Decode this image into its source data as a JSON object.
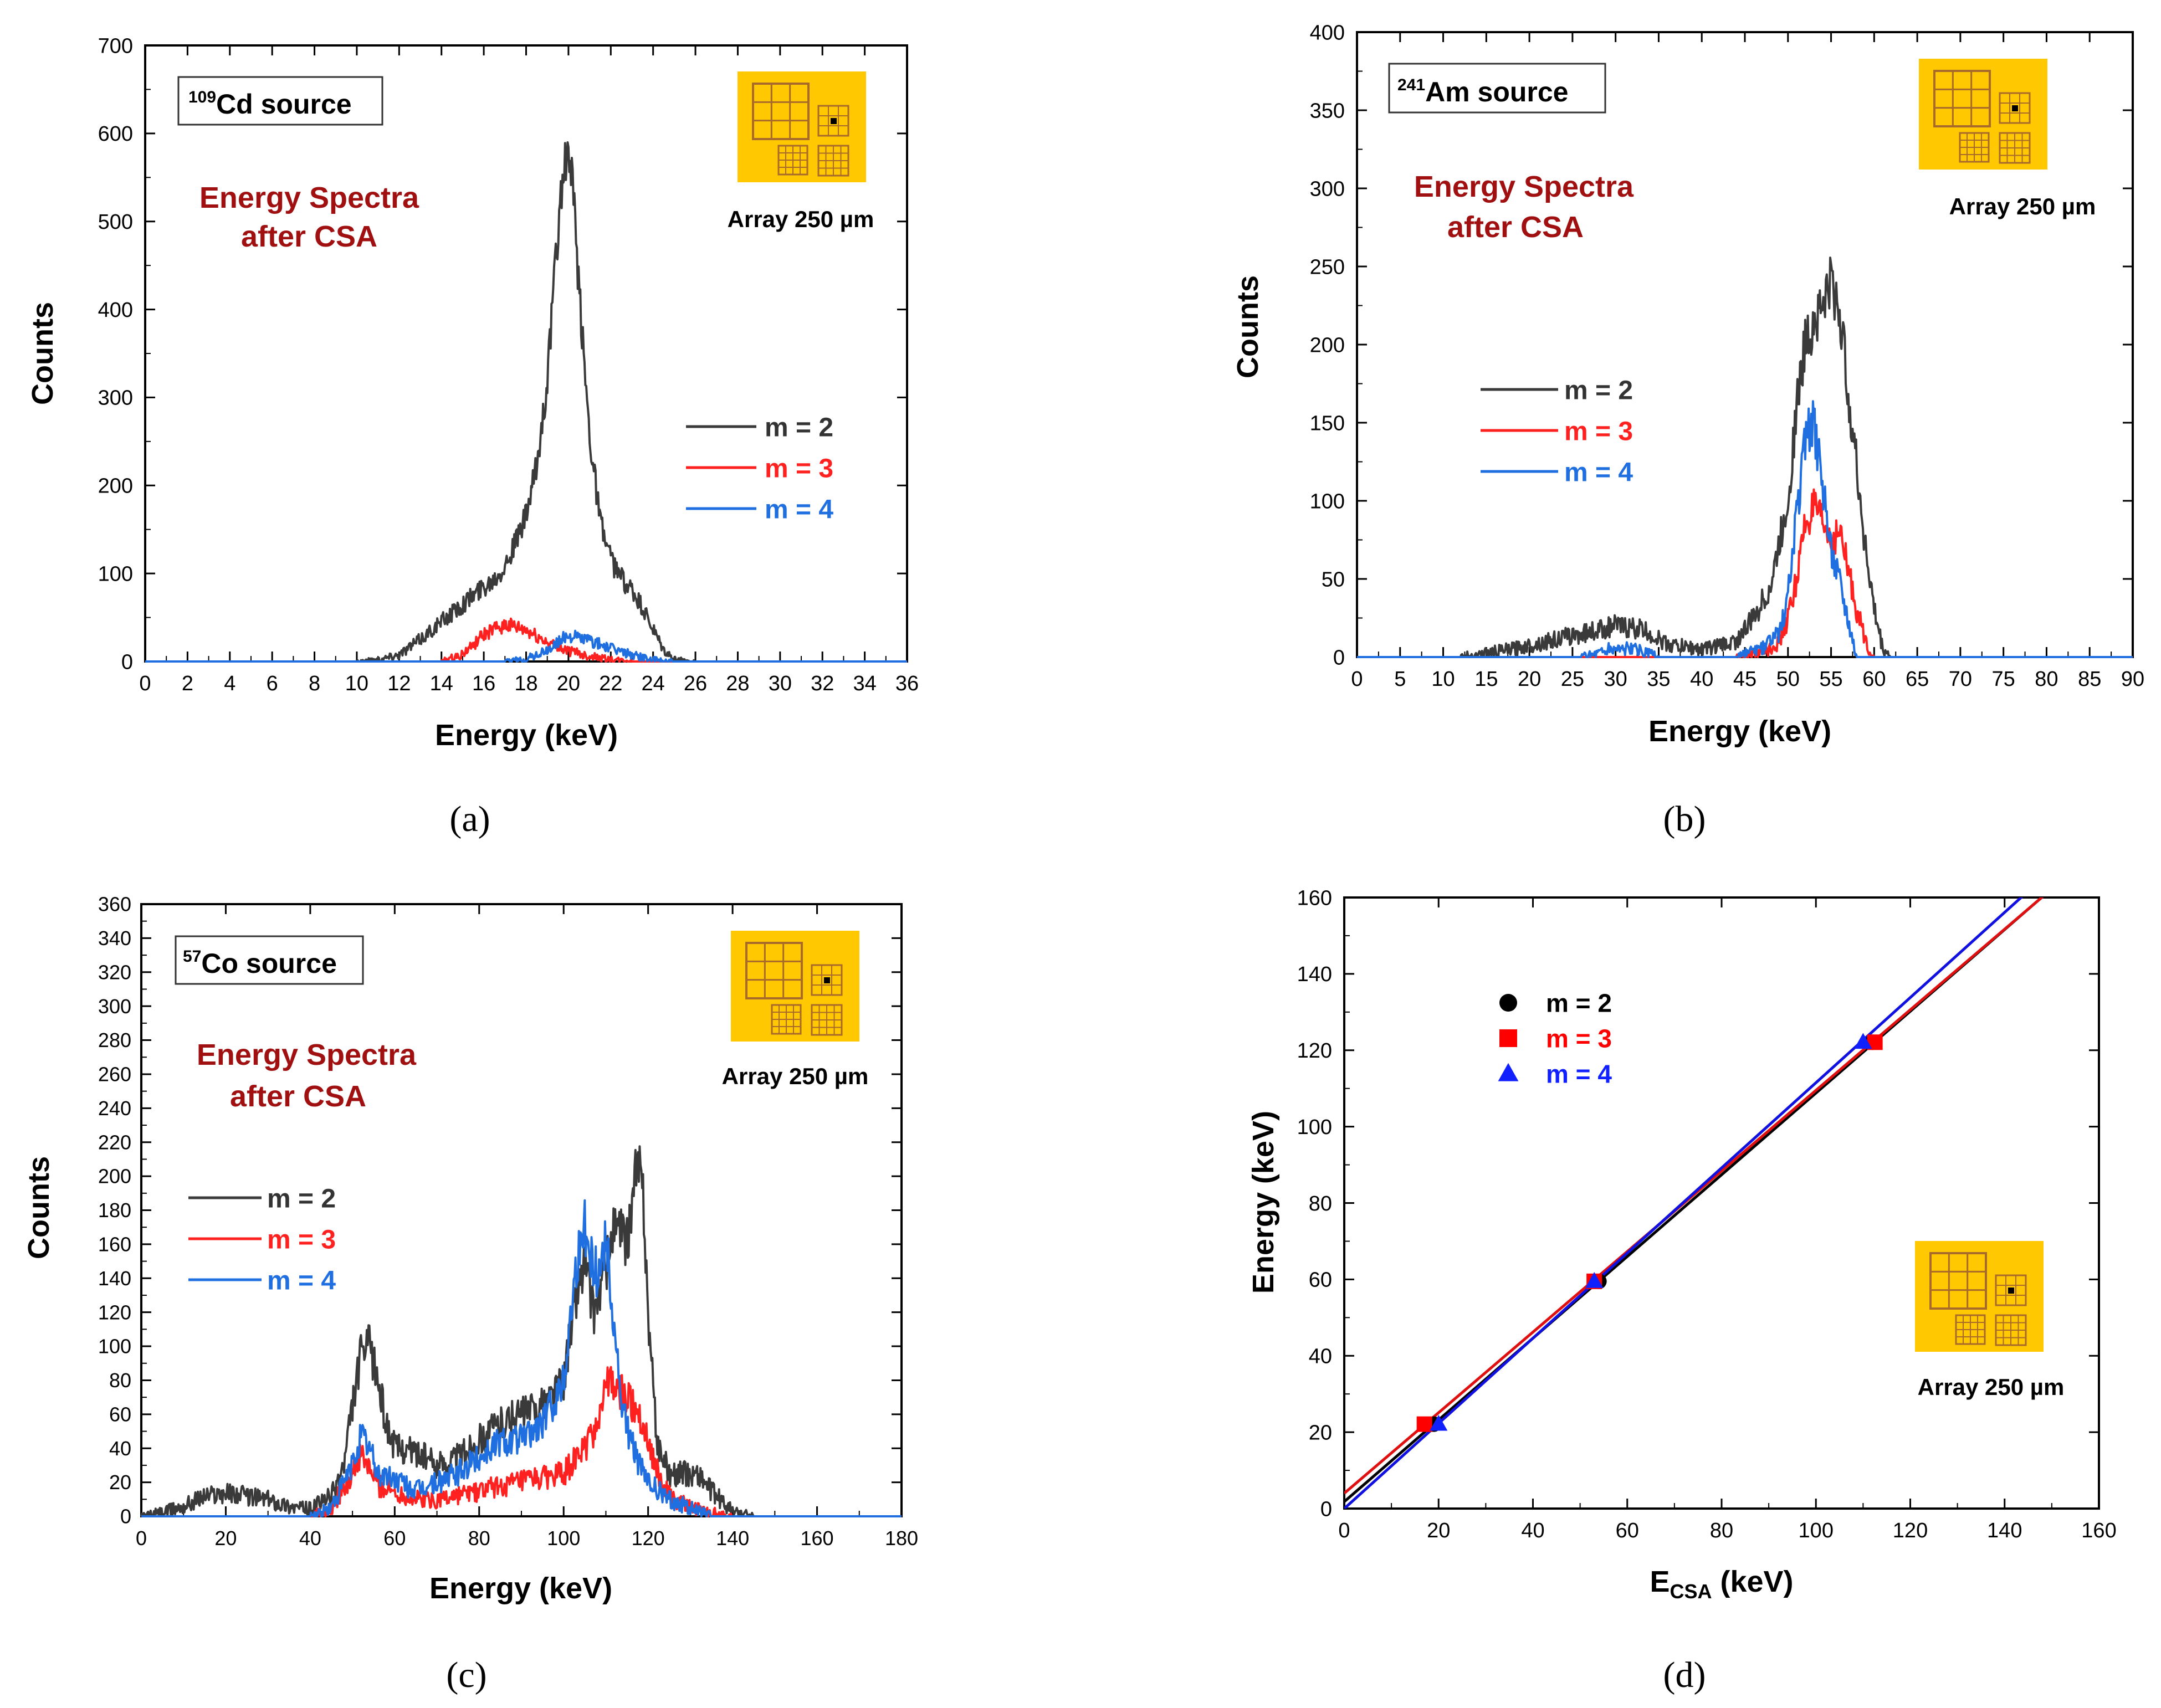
{
  "figure": {
    "panel_labels": [
      "(a)",
      "(b)",
      "(c)",
      "(d)"
    ],
    "inset_caption": "Array 250 µm",
    "colors": {
      "m2": "#3a3a3a",
      "m3": "#ff2020",
      "m4": "#1f6fe0",
      "fit_black": "#000000",
      "fit_red": "#e01010",
      "fit_blue": "#1010e0",
      "annotation": "#a01010",
      "inset_bg": "#ffc800",
      "inset_line": "#a86a2a"
    }
  },
  "chart_data": [
    {
      "id": "a",
      "type": "line",
      "source_sup": "109",
      "source_text": "Cd source",
      "annotation": [
        "Energy Spectra",
        "after CSA"
      ],
      "xlabel": "Energy (keV)",
      "ylabel": "Counts",
      "xlim": [
        0,
        36
      ],
      "ylim": [
        0,
        700
      ],
      "xticks": [
        0,
        2,
        4,
        6,
        8,
        10,
        12,
        14,
        16,
        18,
        20,
        22,
        24,
        26,
        28,
        30,
        32,
        34,
        36
      ],
      "yticks": [
        0,
        100,
        200,
        300,
        400,
        500,
        600,
        700
      ],
      "series": [
        {
          "name": "m = 2",
          "key": "m2",
          "x": [
            0,
            10,
            11,
            12,
            13,
            14,
            15,
            16,
            16.5,
            17,
            17.5,
            18,
            18.5,
            19,
            19.3,
            19.6,
            19.8,
            20,
            20.2,
            20.5,
            21,
            21.5,
            22,
            22.5,
            23,
            23.5,
            24,
            24.5,
            25,
            26,
            36
          ],
          "y": [
            0,
            0,
            2,
            8,
            25,
            45,
            65,
            85,
            95,
            110,
            135,
            165,
            220,
            320,
            420,
            520,
            560,
            575,
            540,
            420,
            260,
            160,
            115,
            95,
            80,
            60,
            35,
            12,
            2,
            0,
            0
          ]
        },
        {
          "name": "m = 3",
          "key": "m3",
          "x": [
            0,
            14,
            15,
            16,
            17,
            18,
            19,
            20,
            21,
            22,
            23,
            36
          ],
          "y": [
            0,
            0,
            8,
            30,
            42,
            35,
            22,
            12,
            6,
            2,
            0,
            0
          ]
        },
        {
          "name": "m = 4",
          "key": "m4",
          "x": [
            0,
            17,
            18,
            19,
            19.5,
            20,
            21,
            22,
            23,
            24,
            25,
            36
          ],
          "y": [
            0,
            0,
            3,
            12,
            22,
            30,
            24,
            15,
            8,
            2,
            0,
            0
          ]
        }
      ]
    },
    {
      "id": "b",
      "type": "line",
      "source_sup": "241",
      "source_text": "Am source",
      "annotation": [
        "Energy Spectra",
        "after CSA"
      ],
      "xlabel": "Energy (keV)",
      "ylabel": "Counts",
      "xlim": [
        0,
        90
      ],
      "ylim": [
        0,
        400
      ],
      "xticks": [
        0,
        5,
        10,
        15,
        20,
        25,
        30,
        35,
        40,
        45,
        50,
        55,
        60,
        65,
        70,
        75,
        80,
        85,
        90
      ],
      "yticks": [
        0,
        50,
        100,
        150,
        200,
        250,
        300,
        350,
        400
      ],
      "series": [
        {
          "name": "m = 2",
          "key": "m2",
          "x": [
            0,
            12,
            18,
            22,
            26,
            30,
            33,
            36,
            40,
            44,
            46,
            48,
            50,
            51,
            52,
            53,
            54,
            55,
            56,
            57,
            58,
            59,
            60,
            61,
            62,
            90
          ],
          "y": [
            0,
            0,
            5,
            10,
            15,
            20,
            18,
            8,
            5,
            10,
            25,
            45,
            100,
            160,
            200,
            215,
            225,
            240,
            220,
            170,
            120,
            70,
            30,
            5,
            0,
            0
          ]
        },
        {
          "name": "m = 3",
          "key": "m3",
          "x": [
            0,
            44,
            47,
            49,
            50,
            51,
            52,
            53,
            54,
            55,
            56,
            57,
            58,
            59,
            60,
            90
          ],
          "y": [
            0,
            0,
            3,
            10,
            25,
            50,
            85,
            95,
            85,
            75,
            80,
            55,
            30,
            10,
            0,
            0
          ]
        },
        {
          "name": "m = 4",
          "key": "m4",
          "x": [
            0,
            26,
            30,
            33,
            35,
            44,
            47,
            49,
            50,
            51,
            52,
            53,
            54,
            55,
            56,
            57,
            58,
            90
          ],
          "y": [
            0,
            0,
            6,
            4,
            0,
            0,
            5,
            15,
            40,
            90,
            140,
            150,
            110,
            70,
            50,
            25,
            0,
            0
          ]
        }
      ]
    },
    {
      "id": "c",
      "type": "line",
      "source_sup": "57",
      "source_text": "Co source",
      "annotation": [
        "Energy Spectra",
        "after CSA"
      ],
      "xlabel": "Energy (keV)",
      "ylabel": "Counts",
      "xlim": [
        0,
        180
      ],
      "ylim": [
        0,
        360
      ],
      "xticks": [
        0,
        20,
        40,
        60,
        80,
        100,
        120,
        140,
        160,
        180
      ],
      "yticks": [
        0,
        20,
        40,
        60,
        80,
        100,
        120,
        140,
        160,
        180,
        200,
        220,
        240,
        260,
        280,
        300,
        320,
        340,
        360
      ],
      "series": [
        {
          "name": "m = 2",
          "key": "m2",
          "x": [
            0,
            5,
            10,
            15,
            20,
            25,
            30,
            35,
            40,
            45,
            48,
            50,
            52,
            54,
            56,
            58,
            60,
            62,
            65,
            70,
            75,
            80,
            85,
            90,
            95,
            100,
            103,
            105,
            107,
            110,
            112,
            115,
            117,
            118,
            119,
            120,
            122,
            125,
            128,
            132,
            135,
            140,
            145,
            170
          ],
          "y": [
            0,
            2,
            6,
            12,
            14,
            12,
            10,
            6,
            4,
            12,
            30,
            65,
            95,
            100,
            80,
            55,
            40,
            40,
            38,
            30,
            35,
            45,
            55,
            60,
            65,
            80,
            130,
            150,
            120,
            145,
            170,
            160,
            200,
            205,
            180,
            120,
            45,
            25,
            25,
            25,
            15,
            3,
            0,
            0
          ]
        },
        {
          "name": "m = 3",
          "key": "m3",
          "x": [
            0,
            40,
            45,
            50,
            52,
            54,
            56,
            60,
            65,
            70,
            80,
            90,
            100,
            105,
            108,
            110,
            112,
            115,
            118,
            120,
            123,
            125,
            130,
            135,
            140,
            170
          ],
          "y": [
            0,
            0,
            5,
            25,
            35,
            28,
            18,
            14,
            10,
            10,
            15,
            20,
            25,
            40,
            55,
            80,
            75,
            70,
            60,
            45,
            20,
            12,
            5,
            2,
            0,
            0
          ]
        },
        {
          "name": "m = 4",
          "key": "m4",
          "x": [
            0,
            40,
            45,
            50,
            52,
            54,
            56,
            60,
            65,
            70,
            75,
            80,
            85,
            90,
            95,
            100,
            103,
            105,
            108,
            110,
            112,
            114,
            116,
            118,
            120,
            125,
            130,
            135,
            170
          ],
          "y": [
            0,
            0,
            5,
            30,
            48,
            40,
            25,
            22,
            15,
            20,
            25,
            35,
            45,
            45,
            55,
            80,
            150,
            170,
            140,
            165,
            110,
            60,
            45,
            30,
            20,
            10,
            5,
            0,
            0
          ]
        }
      ]
    },
    {
      "id": "d",
      "type": "scatter",
      "xlabel_main": "E",
      "xlabel_sub": "CSA",
      "xlabel_unit": " (keV)",
      "ylabel": "Energy (keV)",
      "xlim": [
        0,
        160
      ],
      "ylim": [
        0,
        160
      ],
      "xticks": [
        0,
        20,
        40,
        60,
        80,
        100,
        120,
        140,
        160
      ],
      "yticks": [
        0,
        20,
        40,
        60,
        80,
        100,
        120,
        140,
        160
      ],
      "series": [
        {
          "name": "m = 2",
          "key": "m2",
          "marker": "circle",
          "color": "#000000",
          "x": [
            19,
            54,
            112
          ],
          "y": [
            22.1,
            59.5,
            122.1
          ],
          "fit": {
            "slope": 1.07,
            "intercept": 1.8
          }
        },
        {
          "name": "m = 3",
          "key": "m3",
          "marker": "square",
          "color": "#ff0000",
          "x": [
            17,
            53,
            112.5
          ],
          "y": [
            22.1,
            59.5,
            122.1
          ],
          "fit": {
            "slope": 1.055,
            "intercept": 4.0
          }
        },
        {
          "name": "m = 4",
          "key": "m4",
          "marker": "triangle",
          "color": "#1020ff",
          "x": [
            20,
            53,
            110
          ],
          "y": [
            22.1,
            59.5,
            122.1
          ],
          "fit": {
            "slope": 1.115,
            "intercept": 0.0
          }
        }
      ]
    }
  ]
}
